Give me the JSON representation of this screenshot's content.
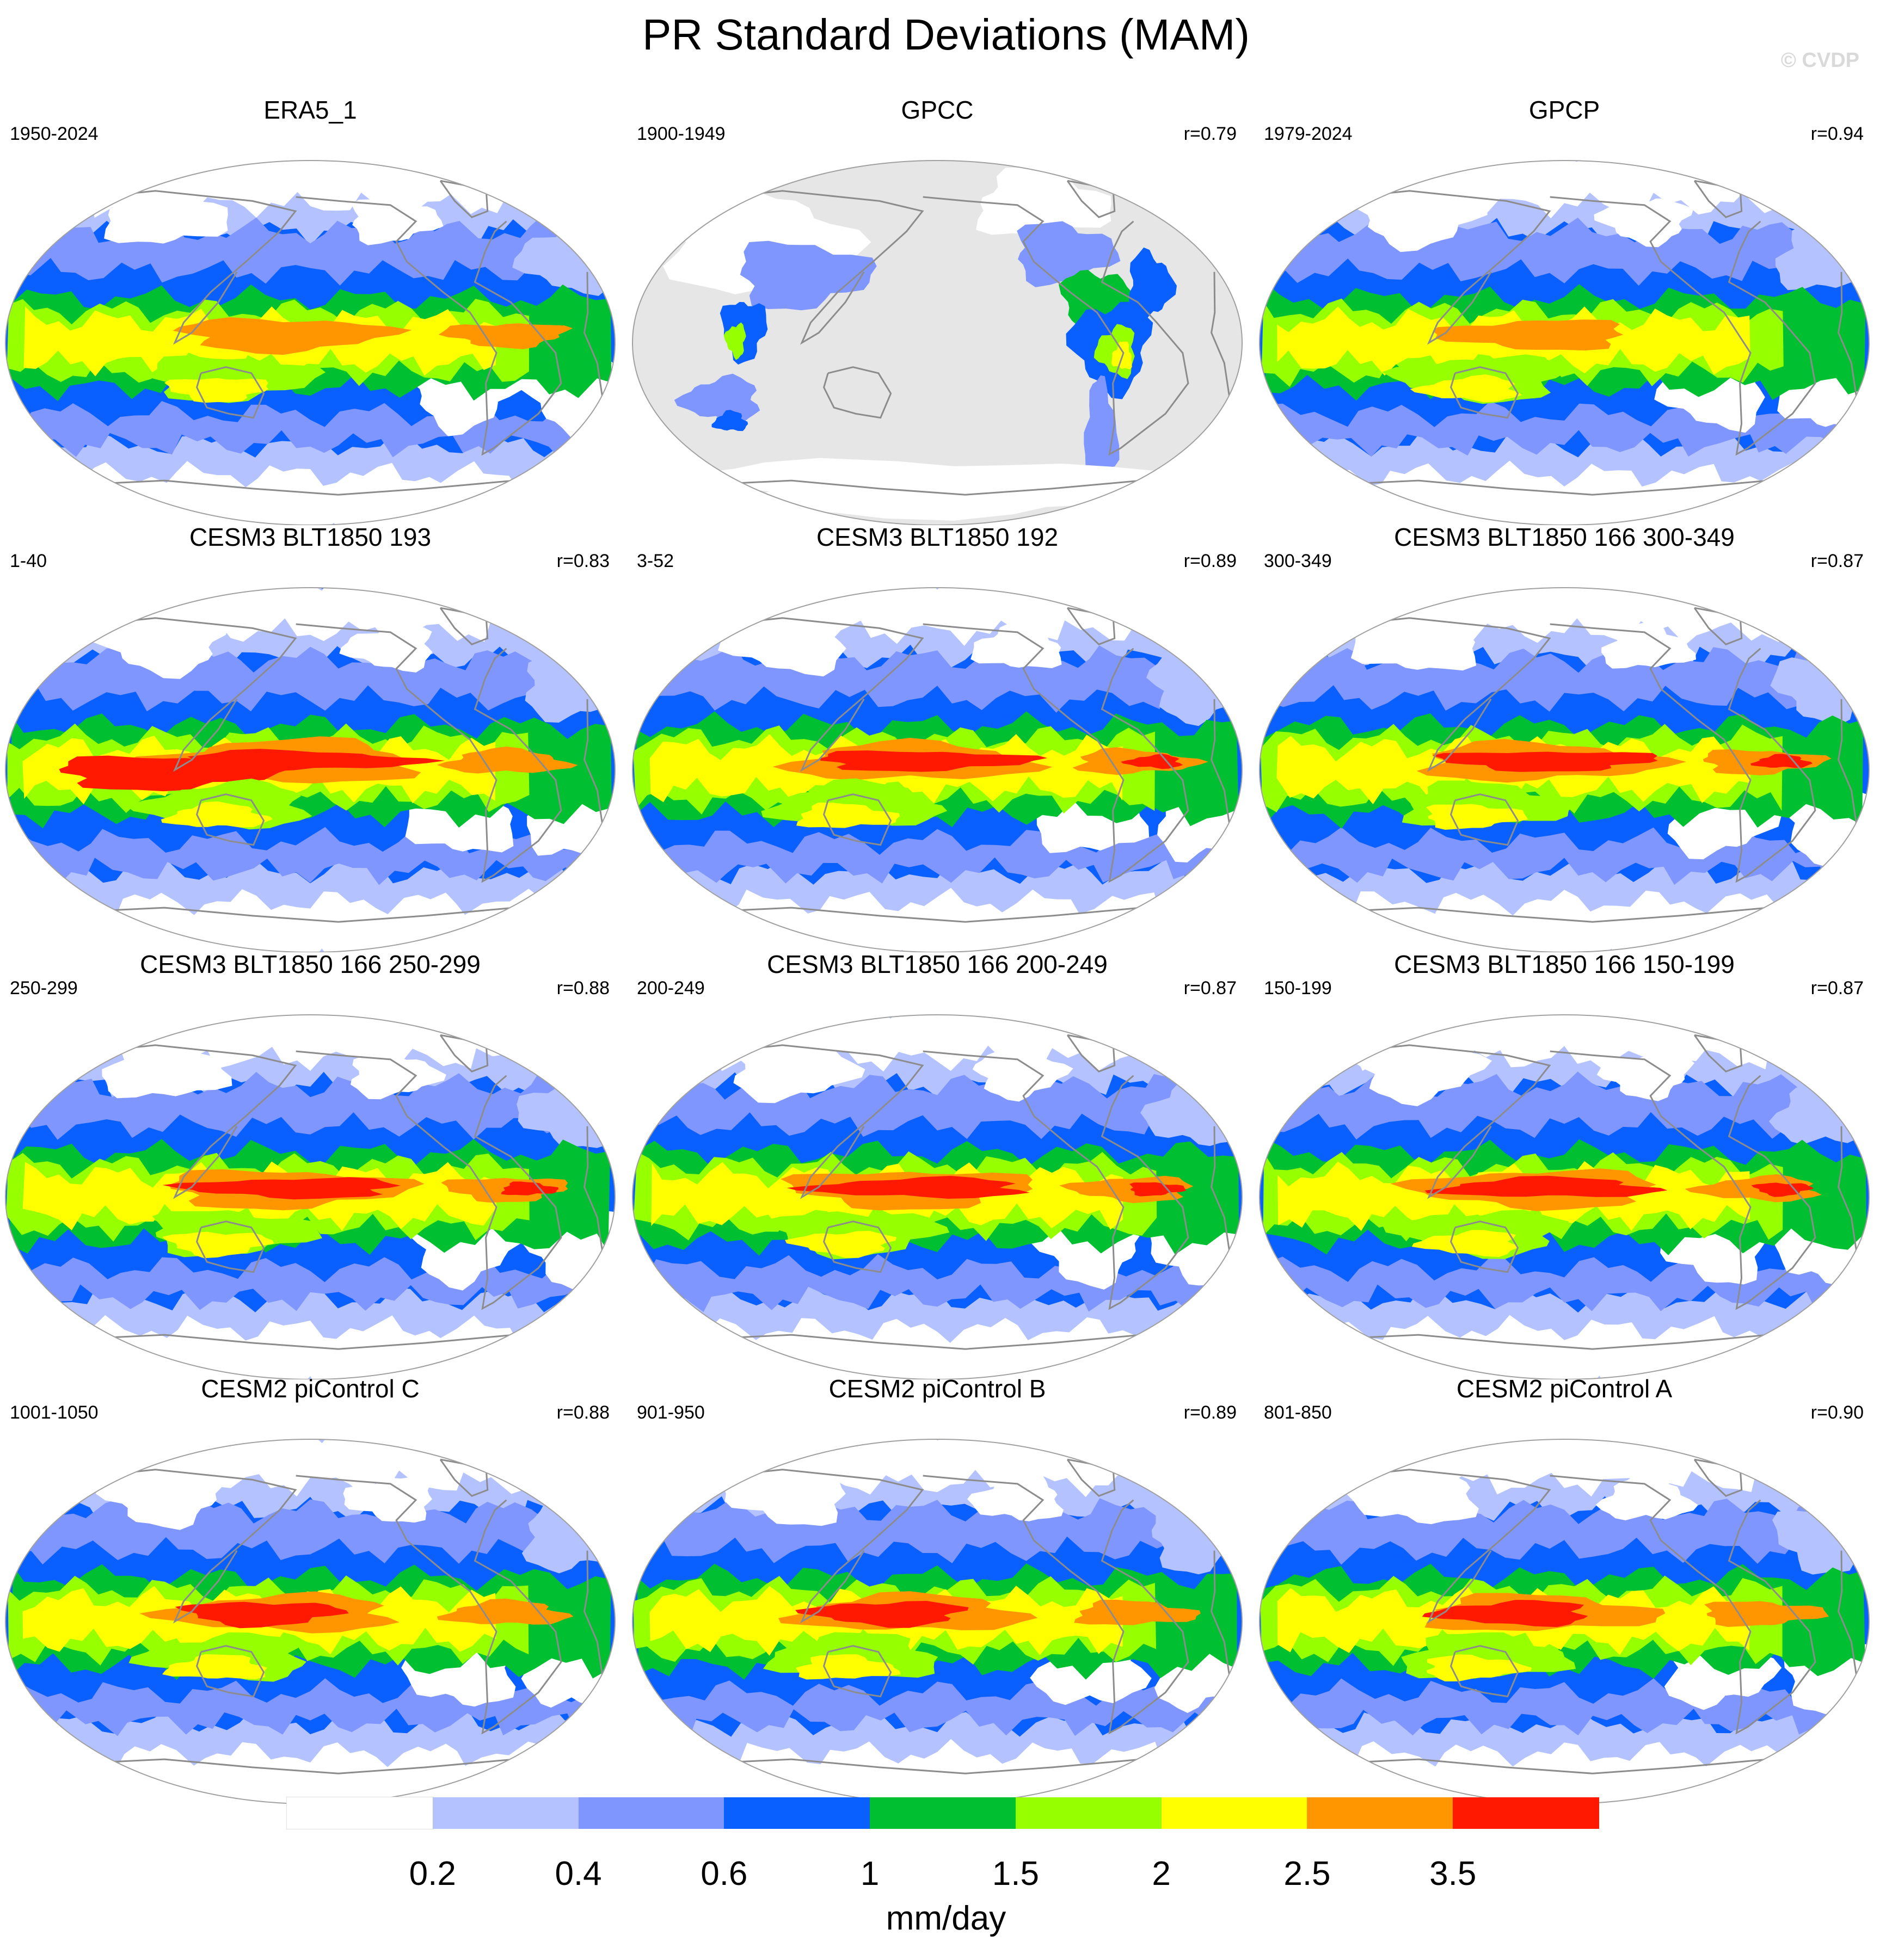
{
  "title": "PR Standard Deviations (MAM)",
  "watermark": "© CVDP",
  "panels": [
    {
      "title": "ERA5_1",
      "years": "1950-2024",
      "r": "",
      "style": "era5"
    },
    {
      "title": "GPCC",
      "years": "1900-1949",
      "r": "r=0.79",
      "style": "land"
    },
    {
      "title": "GPCP",
      "years": "1979-2024",
      "r": "r=0.94",
      "style": "obs"
    },
    {
      "title": "CESM3 BLT1850 193",
      "years": "1-40",
      "r": "r=0.83",
      "style": "strong"
    },
    {
      "title": "CESM3 BLT1850 192",
      "years": "3-52",
      "r": "r=0.89",
      "style": "model"
    },
    {
      "title": "CESM3 BLT1850 166 300-349",
      "years": "300-349",
      "r": "r=0.87",
      "style": "model"
    },
    {
      "title": "CESM3 BLT1850 166 250-299",
      "years": "250-299",
      "r": "r=0.88",
      "style": "model"
    },
    {
      "title": "CESM3 BLT1850 166 200-249",
      "years": "200-249",
      "r": "r=0.87",
      "style": "model"
    },
    {
      "title": "CESM3 BLT1850 166 150-199",
      "years": "150-199",
      "r": "r=0.87",
      "style": "model"
    },
    {
      "title": "CESM2 piControl C",
      "years": "1001-1050",
      "r": "r=0.88",
      "style": "cesm2"
    },
    {
      "title": "CESM2 piControl B",
      "years": "901-950",
      "r": "r=0.89",
      "style": "cesm2"
    },
    {
      "title": "CESM2 piControl A",
      "years": "801-850",
      "r": "r=0.90",
      "style": "cesm2"
    }
  ],
  "colorbar": {
    "colors": [
      "#ffffff",
      "#b4c3ff",
      "#7f96ff",
      "#0a5fff",
      "#00c032",
      "#96ff00",
      "#ffff00",
      "#ff9600",
      "#ff1900"
    ],
    "labels": [
      "0.2",
      "0.4",
      "0.6",
      "1",
      "1.5",
      "2",
      "2.5",
      "3.5"
    ],
    "units": "mm/day"
  },
  "colors": {
    "land_mask": "#e6e6e6",
    "coast": "#8c8c8c",
    "border": "#a0a0a0"
  }
}
